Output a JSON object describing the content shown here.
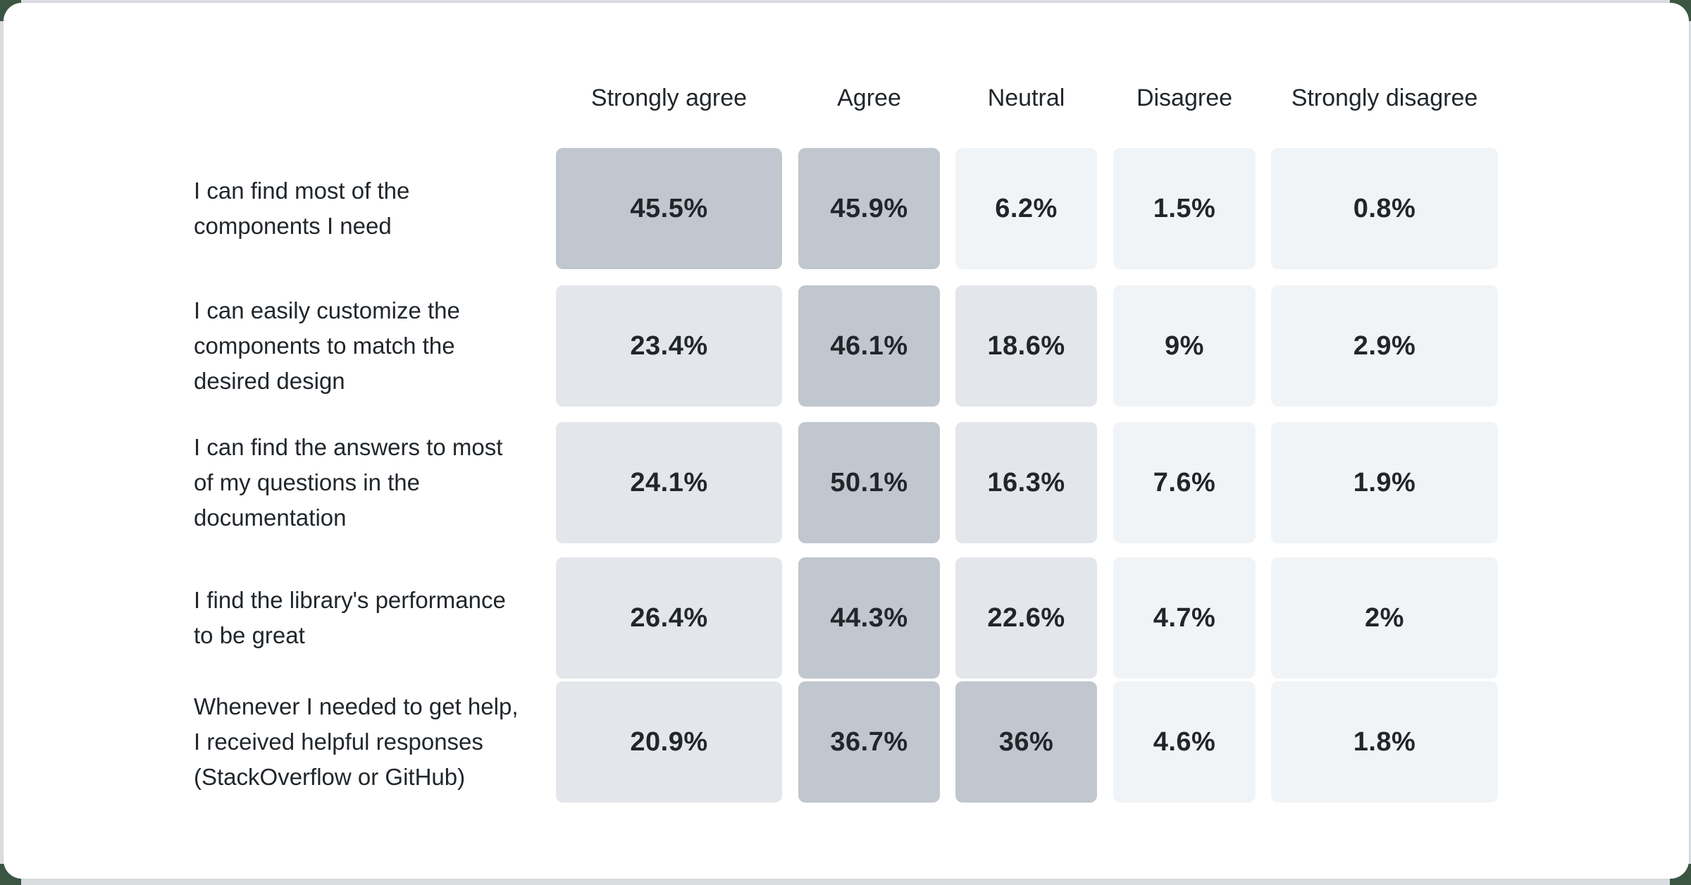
{
  "ui": {
    "background_corner_green": "#3a5542",
    "gutter_gray": "#d9dde0",
    "card_bg": "#ffffff",
    "text_color": "#21262b"
  },
  "chart_data": {
    "type": "heatmap",
    "unit": "%",
    "title": "",
    "legend_position": "none",
    "grid": "off",
    "columns": [
      "Strongly agree",
      "Agree",
      "Neutral",
      "Disagree",
      "Strongly disagree"
    ],
    "rows": [
      {
        "label": "I can find most of the components I need",
        "label_lines": [
          "I can find most of the",
          "components I need"
        ]
      },
      {
        "label": "I can easily customize the components to match the desired design",
        "label_lines": [
          "I can easily customize the",
          "components to match the",
          "desired design"
        ]
      },
      {
        "label": "I can find the answers to most of my questions in the documentation",
        "label_lines": [
          "I can find the answers to most",
          "of my questions in the",
          "documentation"
        ]
      },
      {
        "label": "I find the library's performance to be great",
        "label_lines": [
          "I find the library's performance",
          "to be great"
        ]
      },
      {
        "label": "Whenever I needed to get help, I received helpful responses (StackOverflow or GitHub)",
        "label_lines": [
          "Whenever I needed to get help,",
          "I received helpful responses",
          "(StackOverflow or GitHub)"
        ]
      }
    ],
    "values": [
      [
        45.5,
        45.9,
        6.2,
        1.5,
        0.8
      ],
      [
        23.4,
        46.1,
        18.6,
        9,
        2.9
      ],
      [
        24.1,
        50.1,
        16.3,
        7.6,
        1.9
      ],
      [
        26.4,
        44.3,
        22.6,
        4.7,
        2
      ],
      [
        20.9,
        36.7,
        36,
        4.6,
        1.8
      ]
    ],
    "display": [
      [
        "45.5%",
        "45.9%",
        "6.2%",
        "1.5%",
        "0.8%"
      ],
      [
        "23.4%",
        "46.1%",
        "18.6%",
        "9%",
        "2.9%"
      ],
      [
        "24.1%",
        "50.1%",
        "16.3%",
        "7.6%",
        "1.9%"
      ],
      [
        "26.4%",
        "44.3%",
        "22.6%",
        "4.7%",
        "2%"
      ],
      [
        "20.9%",
        "36.7%",
        "36%",
        "4.6%",
        "1.8%"
      ]
    ],
    "color_scale": {
      "low": "#f1f4f7",
      "mid": "#e3e6ea",
      "high": "#c0c7ce",
      "threshold_mid": 10,
      "threshold_high": 30
    }
  }
}
